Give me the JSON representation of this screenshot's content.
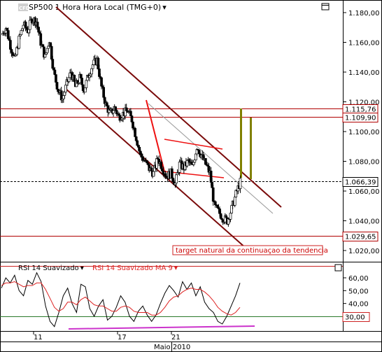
{
  "header": {
    "logo_text": "CFD",
    "instrument": "SP500",
    "interval": "1 Hora Hora Local (TMG+0)",
    "dropdown_glyph": "▾",
    "window_icon": "window-restore-icon"
  },
  "chart_data": [
    {
      "type": "candlestick",
      "title": "SP500 1 Hora Hora Local (TMG+0)",
      "y_ticks": [
        1020,
        1040,
        1060,
        1080,
        1100,
        1120,
        1140,
        1160,
        1180
      ],
      "y_tick_labels": [
        "1.020,00",
        "1.040,00",
        "1.060,00",
        "1.080,00",
        "1.100,00",
        "1.120,00",
        "1.140,00",
        "1.160,00",
        "1.180,00"
      ],
      "ylim": [
        1012,
        1192
      ],
      "x_ticks": [
        "11",
        "17",
        "21"
      ],
      "x_axis_caption": "Maio 2010",
      "price_series": [
        1165,
        1170,
        1158,
        1148,
        1162,
        1172,
        1168,
        1176,
        1174,
        1160,
        1150,
        1162,
        1140,
        1128,
        1122,
        1132,
        1140,
        1130,
        1136,
        1128,
        1138,
        1145,
        1148,
        1130,
        1118,
        1112,
        1116,
        1110,
        1112,
        1114,
        1108,
        1096,
        1084,
        1080,
        1075,
        1072,
        1082,
        1076,
        1070,
        1072,
        1065,
        1078,
        1076,
        1080,
        1076,
        1090,
        1084,
        1078,
        1072,
        1050,
        1046,
        1042,
        1040,
        1048,
        1058,
        1066
      ],
      "horizontal_levels": [
        {
          "value": 1115.76,
          "label": "1.115,76",
          "color": "#b00000",
          "box": "#ffffff"
        },
        {
          "value": 1109.9,
          "label": "1.109,90",
          "color": "#b00000",
          "box": "#ffffff"
        },
        {
          "value": 1066.39,
          "label": "1.066,39",
          "color": "#000000",
          "box": "#ffffff",
          "dashed": true
        },
        {
          "value": 1029.65,
          "label": "1.029,65",
          "color": "#b00000",
          "box": "#ffffff"
        }
      ],
      "annotation": "target natural da continuaçao da tendencia",
      "colors": {
        "channel": "#7a0a0a",
        "pennant": "#ee1111",
        "target_bars": "#808000",
        "mid_line": "#9a9a9a",
        "candles": "#000000"
      }
    },
    {
      "type": "line",
      "title": "RSI 14 Suavizado",
      "series": [
        {
          "name": "RSI 14 Suavizado",
          "color": "#000000",
          "values": [
            52,
            60,
            56,
            62,
            50,
            46,
            58,
            55,
            64,
            57,
            38,
            26,
            22,
            33,
            46,
            52,
            40,
            33,
            55,
            53,
            36,
            30,
            38,
            43,
            27,
            30,
            37,
            46,
            41,
            30,
            26,
            34,
            38,
            31,
            26,
            31,
            40,
            48,
            54,
            50,
            45,
            57,
            51,
            56,
            46,
            53,
            41,
            36,
            33,
            26,
            24,
            30,
            38,
            46,
            56
          ]
        },
        {
          "name": "RSI 14 Suavizado MA 9",
          "color": "#dd2222",
          "values": [
            54,
            56,
            56,
            57,
            55,
            53,
            54,
            54,
            56,
            56,
            51,
            44,
            37,
            34,
            36,
            41,
            41,
            39,
            43,
            45,
            42,
            39,
            38,
            38,
            36,
            34,
            34,
            37,
            38,
            37,
            34,
            33,
            33,
            33,
            31,
            31,
            33,
            37,
            42,
            45,
            46,
            49,
            51,
            52,
            51,
            51,
            49,
            46,
            42,
            37,
            34,
            32,
            31,
            33,
            37
          ]
        }
      ],
      "y_ticks": [
        30,
        40,
        50,
        60
      ],
      "y_tick_labels": [
        "30,00",
        "40,00",
        "50,00",
        "60,00"
      ],
      "ylim": [
        15,
        70
      ],
      "highlight_level": {
        "value": 30,
        "label": "30,00"
      },
      "reference_levels": [
        70,
        30
      ]
    }
  ]
}
